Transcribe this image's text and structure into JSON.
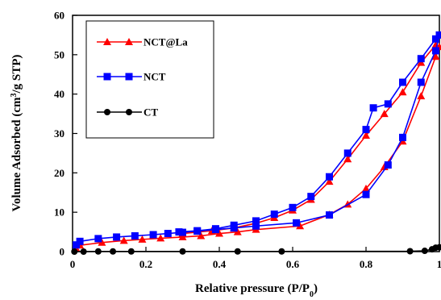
{
  "chart_data": {
    "type": "line",
    "title": "",
    "xlabel": "Relative pressure (P/P",
    "xlabel_sub": "0",
    "xlabel_end": ")",
    "ylabel": "Volume Adsorbed (cm",
    "ylabel_sup": "3",
    "ylabel_end": "/g STP)",
    "xlim": [
      0,
      1.0
    ],
    "ylim": [
      0,
      60
    ],
    "xticks": [
      0,
      0.2,
      0.4,
      0.6,
      0.8,
      1.0
    ],
    "xtick_labels": [
      "0",
      "0.2",
      "0.4",
      "0.6",
      "0.8",
      "1"
    ],
    "yticks": [
      0,
      10,
      20,
      30,
      40,
      50,
      60
    ],
    "ytick_labels": [
      "0",
      "10",
      "20",
      "30",
      "40",
      "50",
      "60"
    ],
    "grid": false,
    "legend_position": "top-left",
    "series": [
      {
        "name": "NCT@La",
        "color": "#ff0000",
        "marker": "triangle",
        "points": [
          [
            0.01,
            0.8
          ],
          [
            0.02,
            1.6
          ],
          [
            0.08,
            2.3
          ],
          [
            0.14,
            2.8
          ],
          [
            0.19,
            3.1
          ],
          [
            0.24,
            3.4
          ],
          [
            0.3,
            3.7
          ],
          [
            0.35,
            4.0
          ],
          [
            0.4,
            4.6
          ],
          [
            0.45,
            5.0
          ],
          [
            0.5,
            5.6
          ],
          [
            0.62,
            6.5
          ],
          [
            0.7,
            9.4
          ],
          [
            0.75,
            12.0
          ],
          [
            0.8,
            16.0
          ],
          [
            0.85,
            21.5
          ],
          [
            0.9,
            28.0
          ],
          [
            0.95,
            39.5
          ],
          [
            0.99,
            49.5
          ],
          [
            1.0,
            52.0
          ],
          [
            0.99,
            52.5
          ],
          [
            0.95,
            48.0
          ],
          [
            0.9,
            40.5
          ],
          [
            0.85,
            35.0
          ],
          [
            0.8,
            29.5
          ],
          [
            0.75,
            23.5
          ],
          [
            0.7,
            17.8
          ],
          [
            0.65,
            13.2
          ],
          [
            0.6,
            10.5
          ],
          [
            0.55,
            8.6
          ],
          [
            0.5,
            7.2
          ],
          [
            0.44,
            6.0
          ],
          [
            0.38,
            5.3
          ],
          [
            0.3,
            4.6
          ]
        ]
      },
      {
        "name": "NCT",
        "color": "#0000ff",
        "marker": "square",
        "points": [
          [
            0.01,
            1.7
          ],
          [
            0.02,
            2.6
          ],
          [
            0.07,
            3.3
          ],
          [
            0.12,
            3.7
          ],
          [
            0.17,
            4.0
          ],
          [
            0.22,
            4.3
          ],
          [
            0.26,
            4.6
          ],
          [
            0.3,
            4.9
          ],
          [
            0.34,
            5.2
          ],
          [
            0.39,
            5.6
          ],
          [
            0.44,
            6.0
          ],
          [
            0.5,
            6.5
          ],
          [
            0.61,
            7.3
          ],
          [
            0.7,
            9.3
          ],
          [
            0.8,
            14.5
          ],
          [
            0.86,
            22.0
          ],
          [
            0.9,
            29.0
          ],
          [
            0.95,
            43.0
          ],
          [
            0.99,
            51.0
          ],
          [
            1.0,
            55.0
          ],
          [
            0.99,
            54.0
          ],
          [
            0.95,
            49.0
          ],
          [
            0.9,
            43.0
          ],
          [
            0.86,
            37.5
          ],
          [
            0.82,
            36.5
          ],
          [
            0.8,
            31.0
          ],
          [
            0.75,
            25.0
          ],
          [
            0.7,
            19.0
          ],
          [
            0.65,
            14.0
          ],
          [
            0.6,
            11.2
          ],
          [
            0.55,
            9.5
          ],
          [
            0.5,
            7.8
          ],
          [
            0.44,
            6.7
          ],
          [
            0.39,
            5.8
          ],
          [
            0.34,
            5.3
          ],
          [
            0.29,
            5.0
          ]
        ]
      },
      {
        "name": "CT",
        "color": "#000000",
        "marker": "circle",
        "points": [
          [
            0.005,
            0.0
          ],
          [
            0.03,
            0.0
          ],
          [
            0.07,
            0.05
          ],
          [
            0.11,
            0.05
          ],
          [
            0.16,
            0.05
          ],
          [
            0.3,
            0.05
          ],
          [
            0.45,
            0.05
          ],
          [
            0.57,
            0.05
          ],
          [
            0.92,
            0.1
          ],
          [
            0.96,
            0.2
          ],
          [
            0.98,
            0.6
          ],
          [
            0.99,
            1.0
          ],
          [
            1.0,
            1.1
          ]
        ]
      }
    ]
  }
}
